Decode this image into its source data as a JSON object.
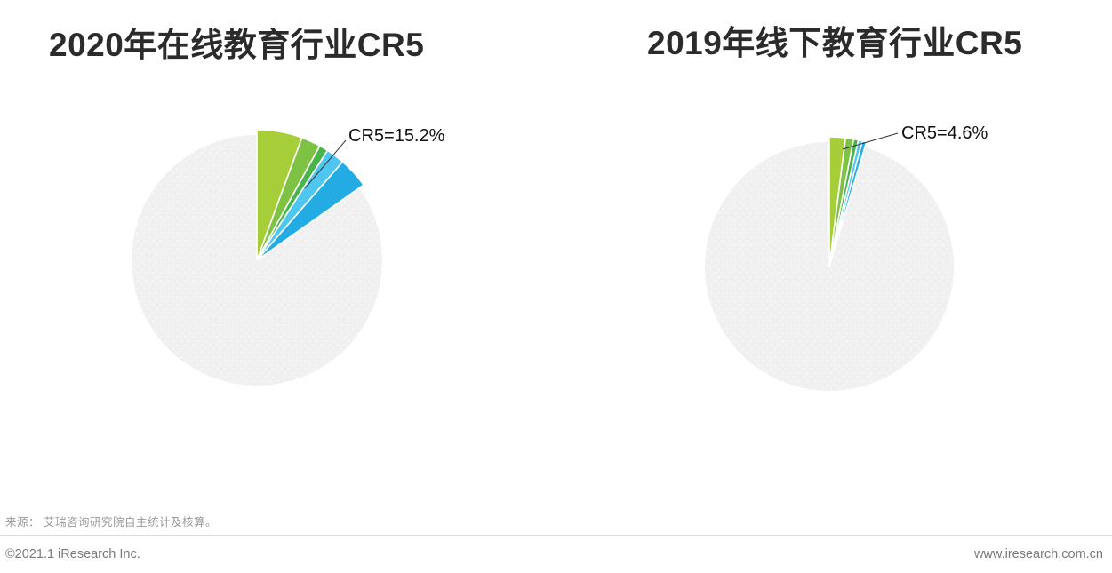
{
  "charts": [
    {
      "title": "2020年在线教育行业CR5"
    },
    {
      "title": "2019年线下教育行业CR5"
    }
  ],
  "chart_data": [
    {
      "type": "pie",
      "title": "2020年在线教育行业CR5",
      "annotation": "CR5=15.2%",
      "cr5_total_percent": 15.2,
      "unit": "%",
      "start_angle_deg": -90,
      "direction": "clockwise",
      "slices": {
        "values": [
          5.6,
          2.4,
          1.1,
          2.3,
          3.8
        ],
        "colors": [
          "#a6ce39",
          "#7dc243",
          "#49b549",
          "#4ec6f0",
          "#23ace4"
        ],
        "note": "individual top-5 shares estimated from arc sizes; labeled total is 15.2%"
      },
      "remainder": {
        "value": 84.8,
        "color": "#f0f0f1"
      }
    },
    {
      "type": "pie",
      "title": "2019年线下教育行业CR5",
      "annotation": "CR5=4.6%",
      "cr5_total_percent": 4.6,
      "unit": "%",
      "start_angle_deg": -90,
      "direction": "clockwise",
      "slices": {
        "values": [
          2.0,
          1.0,
          0.6,
          0.5,
          0.5
        ],
        "colors": [
          "#a6ce39",
          "#7dc243",
          "#49b549",
          "#4ec6f0",
          "#23ace4"
        ],
        "note": "individual top-5 shares estimated from arc sizes; labeled total is 4.6%"
      },
      "remainder": {
        "value": 95.4,
        "color": "#f0f0f1"
      }
    }
  ],
  "source": "来源： 艾瑞咨询研究院自主统计及核算。",
  "footer": {
    "copyright": "©2021.1 iResearch Inc.",
    "website": "www.iresearch.com.cn"
  }
}
